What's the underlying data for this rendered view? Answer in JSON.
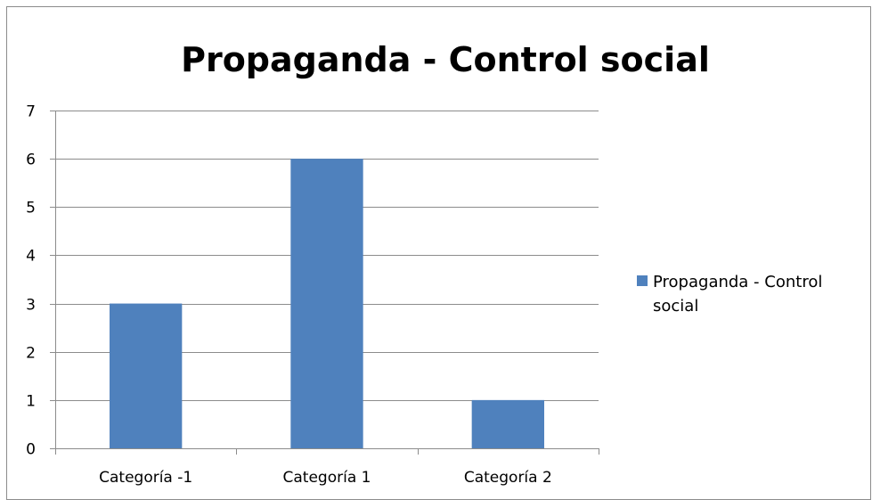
{
  "chart_data": {
    "type": "bar",
    "title": "Propaganda - Control social",
    "categories": [
      "Categoría -1",
      "Categoría 1",
      "Categoría 2"
    ],
    "series": [
      {
        "name": "Propaganda - Control social",
        "values": [
          3,
          6,
          1
        ],
        "color": "#4F81BD"
      }
    ],
    "y_ticks": [
      "0",
      "1",
      "2",
      "3",
      "4",
      "5",
      "6",
      "7"
    ],
    "ylim": [
      0,
      7
    ],
    "grid": true,
    "legend": {
      "position": "right",
      "lines": [
        "Propaganda - Control",
        "social"
      ]
    }
  }
}
